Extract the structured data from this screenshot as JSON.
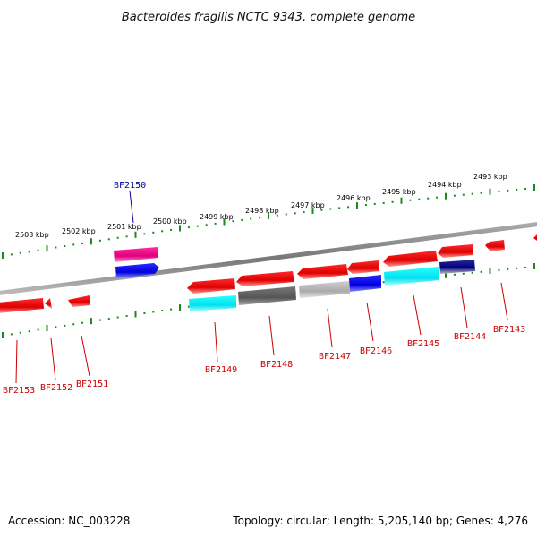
{
  "title": "Bacteroides fragilis NCTC 9343, complete genome",
  "footer": {
    "accession": "Accession: NC_003228",
    "summary": "Topology: circular; Length: 5,205,140 bp; Genes: 4,276"
  },
  "colors": {
    "backbone": "#808080",
    "tick": "#1a8a1a",
    "gene_red": "#ee0000",
    "label_red": "#cc0000",
    "label_blue": "#000099"
  },
  "kbp_ticks": [
    "2503 kbp",
    "2502 kbp",
    "2501 kbp",
    "2500 kbp",
    "2499 kbp",
    "2498 kbp",
    "2497 kbp",
    "2496 kbp",
    "2495 kbp",
    "2494 kbp",
    "2493 kbp"
  ],
  "gene_labels": [
    {
      "id": "BF2153",
      "color": "label_red"
    },
    {
      "id": "BF2152",
      "color": "label_red"
    },
    {
      "id": "BF2151",
      "color": "label_red"
    },
    {
      "id": "BF2150",
      "color": "label_blue"
    },
    {
      "id": "BF2149",
      "color": "label_red"
    },
    {
      "id": "BF2148",
      "color": "label_red"
    },
    {
      "id": "BF2147",
      "color": "label_red"
    },
    {
      "id": "BF2146",
      "color": "label_red"
    },
    {
      "id": "BF2145",
      "color": "label_red"
    },
    {
      "id": "BF2144",
      "color": "label_red"
    },
    {
      "id": "BF2143",
      "color": "label_red"
    }
  ]
}
